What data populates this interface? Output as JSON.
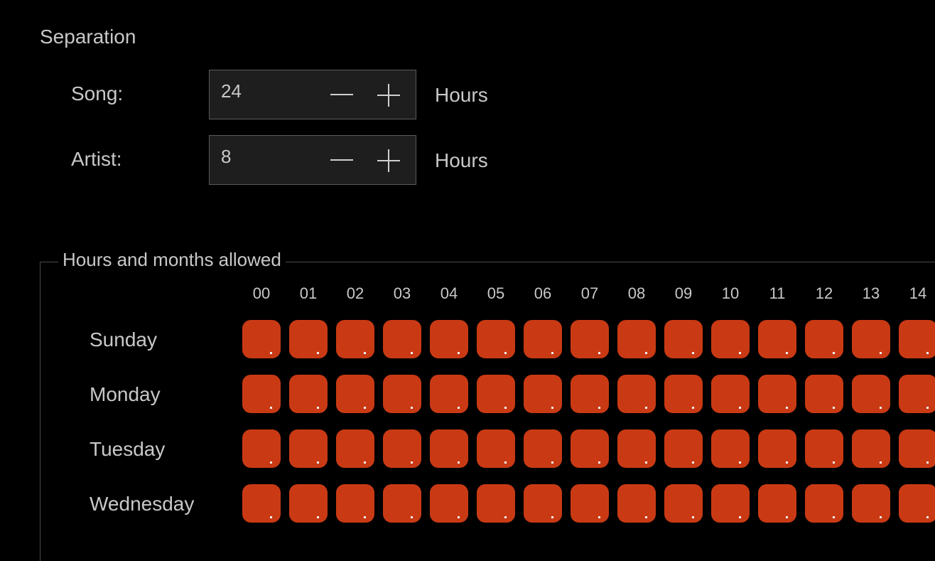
{
  "separation": {
    "title": "Separation",
    "song": {
      "label": "Song:",
      "value": "24",
      "unit": "Hours"
    },
    "artist": {
      "label": "Artist:",
      "value": "8",
      "unit": "Hours"
    }
  },
  "hours_group": {
    "legend": "Hours and months allowed",
    "hours": [
      "00",
      "01",
      "02",
      "03",
      "04",
      "05",
      "06",
      "07",
      "08",
      "09",
      "10",
      "11",
      "12",
      "13",
      "14"
    ],
    "days": [
      "Sunday",
      "Monday",
      "Tuesday",
      "Wednesday"
    ]
  },
  "colors": {
    "cell_active": "#c93a14"
  }
}
